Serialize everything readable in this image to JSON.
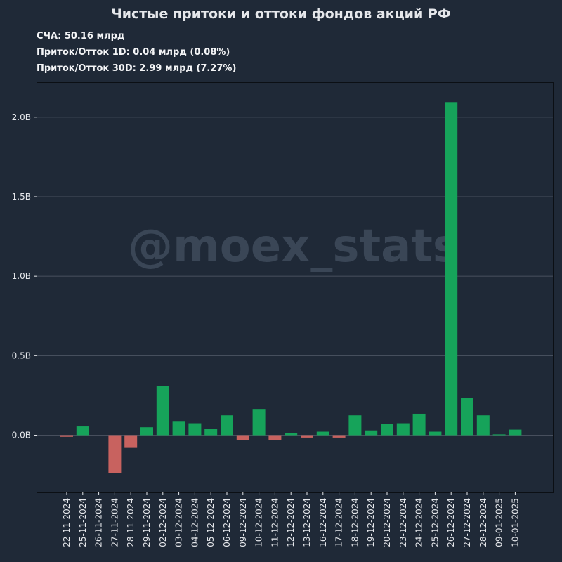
{
  "chart_data": {
    "type": "bar",
    "title": "Чистые притоки и оттоки фондов акций РФ",
    "stats": [
      "СЧА: 50.16 млрд",
      "Приток/Отток 1D: 0.04 млрд (0.08%)",
      "Приток/Отток 30D: 2.99 млрд (7.27%)"
    ],
    "watermark": "@moex_stats",
    "categories": [
      "22-11-2024",
      "25-11-2024",
      "26-11-2024",
      "27-11-2024",
      "28-11-2024",
      "29-11-2024",
      "02-12-2024",
      "03-12-2024",
      "04-12-2024",
      "05-12-2024",
      "06-12-2024",
      "09-12-2024",
      "10-12-2024",
      "11-12-2024",
      "12-12-2024",
      "13-12-2024",
      "16-12-2024",
      "17-12-2024",
      "18-12-2024",
      "19-12-2024",
      "20-12-2024",
      "23-12-2024",
      "24-12-2024",
      "25-12-2024",
      "26-12-2024",
      "27-12-2024",
      "28-12-2024",
      "09-01-2025",
      "10-01-2025"
    ],
    "values": [
      -0.01,
      0.055,
      0.0,
      -0.24,
      -0.08,
      0.05,
      0.31,
      0.085,
      0.075,
      0.04,
      0.125,
      -0.03,
      0.165,
      -0.03,
      0.015,
      -0.015,
      0.022,
      -0.015,
      0.125,
      0.03,
      0.07,
      0.075,
      0.135,
      0.022,
      2.095,
      0.235,
      0.125,
      0.005,
      0.035
    ],
    "y_ticks": [
      0.0,
      0.5,
      1.0,
      1.5,
      2.0
    ],
    "y_tick_labels": [
      "0.0B",
      "0.5B",
      "1.0B",
      "1.5B",
      "2.0B"
    ],
    "ylim": [
      -0.36,
      2.22
    ],
    "xlabel": "",
    "ylabel": "",
    "grid": true,
    "colors": {
      "positive": "#16a35a",
      "negative": "#c8625f",
      "background": "#1f2937",
      "text": "#e5e7eb"
    }
  }
}
